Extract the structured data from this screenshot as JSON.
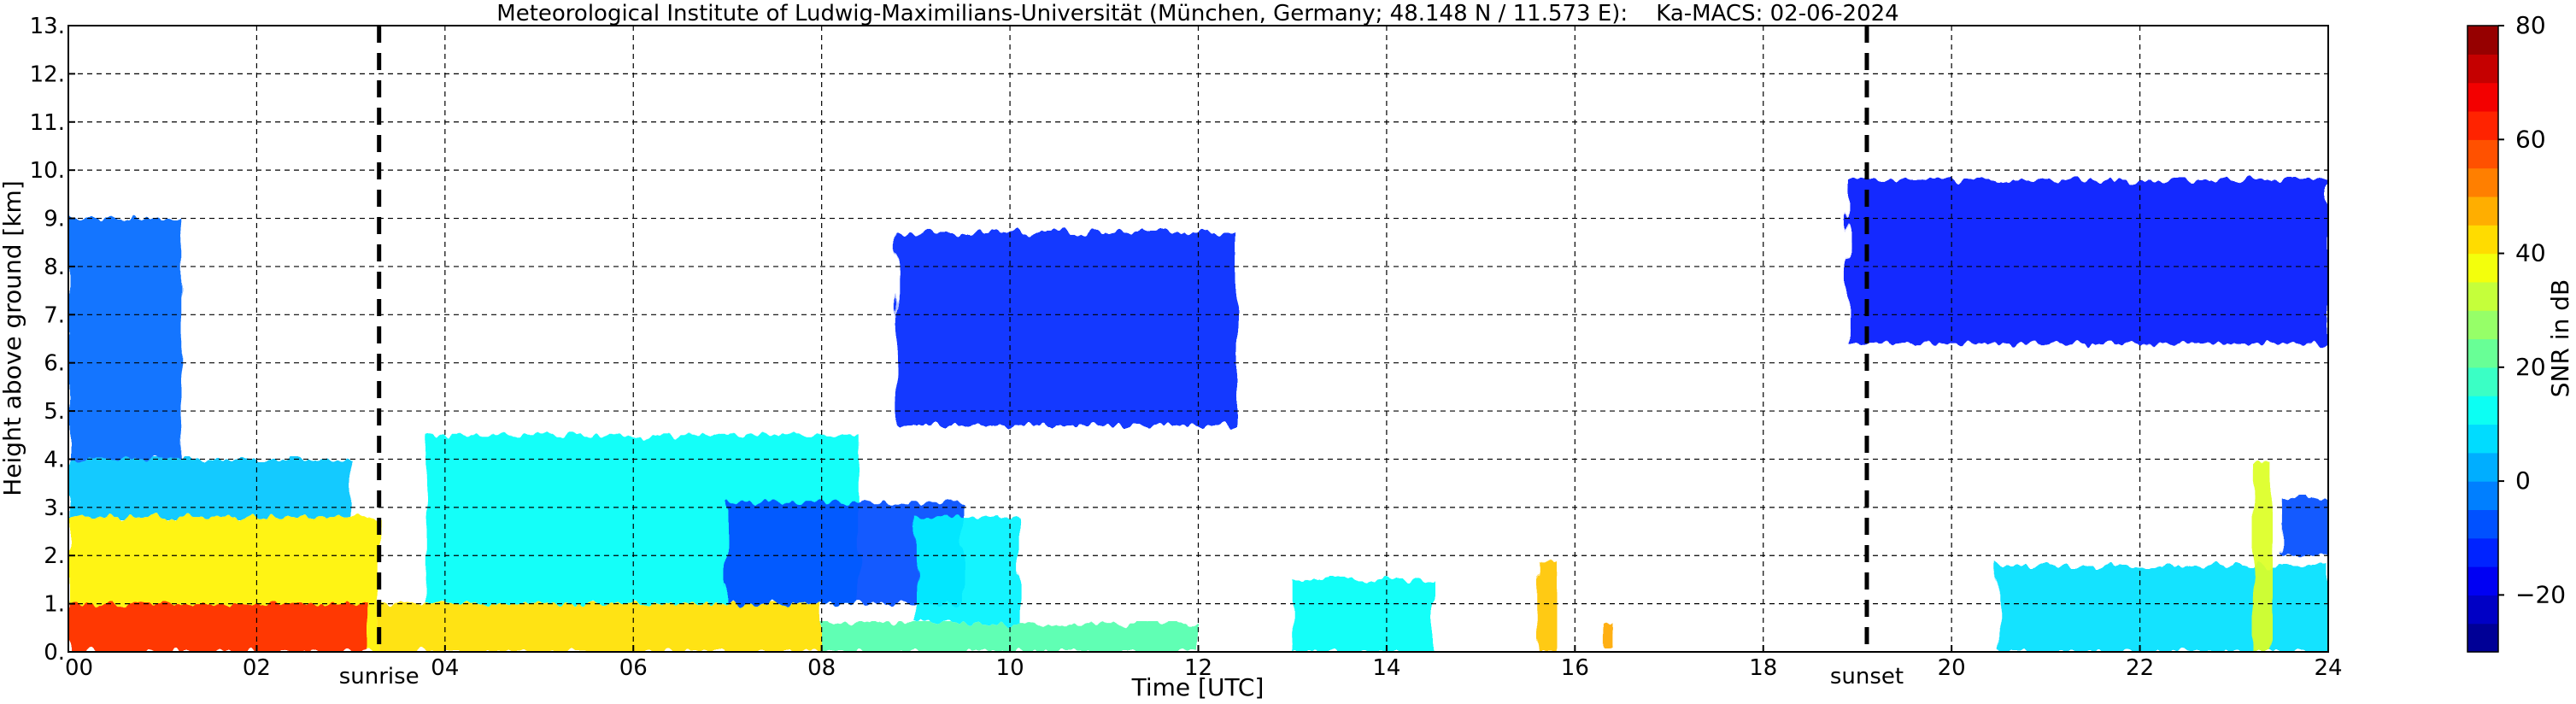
{
  "chart_data": {
    "type": "heatmap",
    "title": "Meteorological Institute of Ludwig-Maximilians-Universität (München, Germany; 48.148 N / 11.573 E):    Ka-MACS: 02-06-2024",
    "xlabel": "Time [UTC]",
    "ylabel": "Height above ground [km]",
    "xlim": [
      0,
      24
    ],
    "ylim": [
      0,
      13
    ],
    "x_ticks": [
      {
        "value": 0,
        "label": "00"
      },
      {
        "value": 2,
        "label": "02"
      },
      {
        "value": 4,
        "label": "04"
      },
      {
        "value": 6,
        "label": "06"
      },
      {
        "value": 8,
        "label": "08"
      },
      {
        "value": 10,
        "label": "10"
      },
      {
        "value": 12,
        "label": "12"
      },
      {
        "value": 14,
        "label": "14"
      },
      {
        "value": 16,
        "label": "16"
      },
      {
        "value": 18,
        "label": "18"
      },
      {
        "value": 20,
        "label": "20"
      },
      {
        "value": 22,
        "label": "22"
      },
      {
        "value": 24,
        "label": "24"
      }
    ],
    "y_ticks": [
      {
        "value": 0,
        "label": "0."
      },
      {
        "value": 1,
        "label": "1."
      },
      {
        "value": 2,
        "label": "2."
      },
      {
        "value": 3,
        "label": "3."
      },
      {
        "value": 4,
        "label": "4."
      },
      {
        "value": 5,
        "label": "5."
      },
      {
        "value": 6,
        "label": "6."
      },
      {
        "value": 7,
        "label": "7."
      },
      {
        "value": 8,
        "label": "8."
      },
      {
        "value": 9,
        "label": "9."
      },
      {
        "value": 10,
        "label": "10."
      },
      {
        "value": 11,
        "label": "11."
      },
      {
        "value": 12,
        "label": "12."
      },
      {
        "value": 13,
        "label": "13."
      }
    ],
    "grid": true,
    "markers": [
      {
        "label": "sunrise",
        "x": 3.3
      },
      {
        "label": "sunset",
        "x": 19.1
      }
    ],
    "colorbar": {
      "label": "SNR in dB",
      "range": [
        -30,
        80
      ],
      "ticks": [
        {
          "value": -20,
          "label": "−20"
        },
        {
          "value": 0,
          "label": "0"
        },
        {
          "value": 20,
          "label": "20"
        },
        {
          "value": 40,
          "label": "40"
        },
        {
          "value": 60,
          "label": "60"
        },
        {
          "value": 80,
          "label": "80"
        }
      ],
      "colors": [
        "#00007f",
        "#0000ff",
        "#007fff",
        "#00ffff",
        "#7fff7f",
        "#ffff00",
        "#ff7f00",
        "#ff0000",
        "#7f0000"
      ]
    },
    "echo_regions": [
      {
        "name": "boundary-layer-night",
        "x": [
          0.0,
          3.3
        ],
        "y": [
          0.0,
          2.8
        ],
        "snr": 40
      },
      {
        "name": "boundary-layer-core",
        "x": [
          0.0,
          3.2
        ],
        "y": [
          0.0,
          1.0
        ],
        "snr": 62
      },
      {
        "name": "low-cloud-morning",
        "x": [
          0.0,
          3.0
        ],
        "y": [
          2.8,
          4.0
        ],
        "snr": 5
      },
      {
        "name": "cirrus-column-early",
        "x": [
          0.0,
          1.2
        ],
        "y": [
          4.0,
          9.0
        ],
        "snr": -5
      },
      {
        "name": "boundary-layer-day",
        "x": [
          3.3,
          8.0
        ],
        "y": [
          0.0,
          1.0
        ],
        "snr": 42
      },
      {
        "name": "convective-plumes",
        "x": [
          3.8,
          8.4
        ],
        "y": [
          1.0,
          4.5
        ],
        "snr": 12
      },
      {
        "name": "mid-cloud-morning",
        "x": [
          7.0,
          9.5
        ],
        "y": [
          1.0,
          3.1
        ],
        "snr": -8
      },
      {
        "name": "boundary-layer-afternoon",
        "x": [
          8.0,
          12.0
        ],
        "y": [
          0.0,
          0.6
        ],
        "snr": 20
      },
      {
        "name": "mid-cloud-late-morning",
        "x": [
          9.0,
          10.1
        ],
        "y": [
          0.6,
          2.8
        ],
        "snr": 10
      },
      {
        "name": "cirrus-midday",
        "x": [
          8.8,
          12.4
        ],
        "y": [
          4.7,
          8.7
        ],
        "snr": -12
      },
      {
        "name": "shallow-echo",
        "x": [
          13.0,
          14.5
        ],
        "y": [
          0.0,
          1.5
        ],
        "snr": 12
      },
      {
        "name": "precip-shaft-1",
        "x": [
          15.6,
          15.8
        ],
        "y": [
          0.0,
          1.9
        ],
        "snr": 45
      },
      {
        "name": "precip-speck",
        "x": [
          16.3,
          16.4
        ],
        "y": [
          0.1,
          0.6
        ],
        "snr": 48
      },
      {
        "name": "cirrus-evening",
        "x": [
          18.9,
          24.0
        ],
        "y": [
          6.4,
          9.8
        ],
        "snr": -14
      },
      {
        "name": "evening-low-echoes",
        "x": [
          20.5,
          24.0
        ],
        "y": [
          0.0,
          1.8
        ],
        "snr": 8
      },
      {
        "name": "precip-shaft-2",
        "x": [
          23.2,
          23.4
        ],
        "y": [
          0.0,
          3.9
        ],
        "snr": 35
      },
      {
        "name": "late-mid-cloud",
        "x": [
          23.5,
          24.0
        ],
        "y": [
          2.0,
          3.2
        ],
        "snr": -8
      }
    ]
  }
}
